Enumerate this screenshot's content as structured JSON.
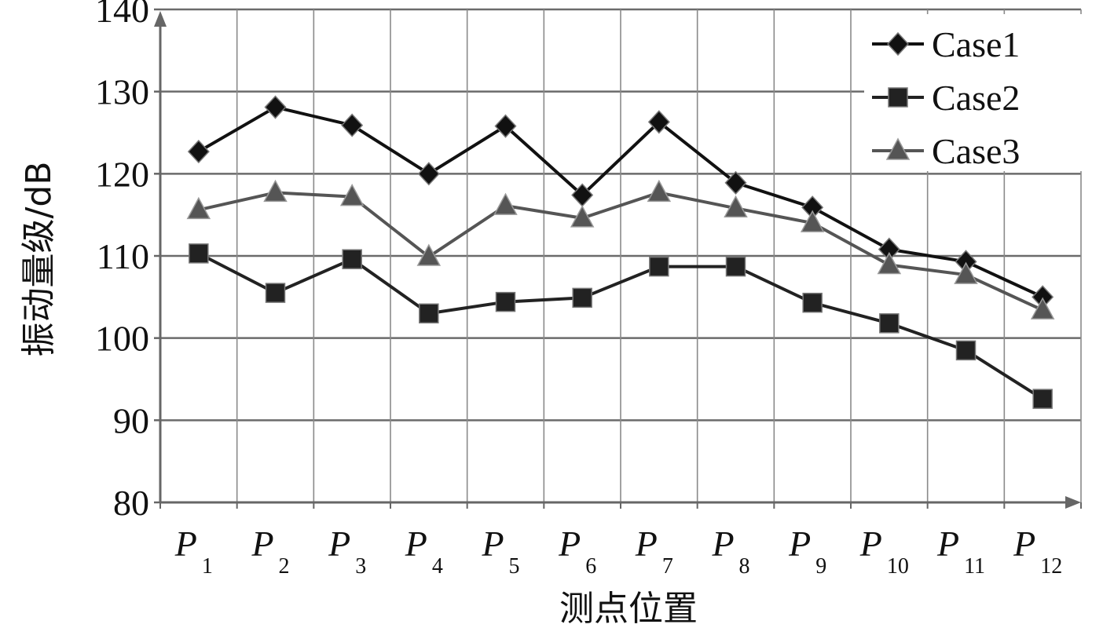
{
  "chart_data": {
    "type": "line",
    "xlabel": "测点位置",
    "ylabel": "振动量级/dB",
    "ylim": [
      80,
      140
    ],
    "yticks": [
      80,
      90,
      100,
      110,
      120,
      130,
      140
    ],
    "grid": true,
    "legend_position": "top-right",
    "categories": [
      {
        "base": "P",
        "sub": "1"
      },
      {
        "base": "P",
        "sub": "2"
      },
      {
        "base": "P",
        "sub": "3"
      },
      {
        "base": "P",
        "sub": "4"
      },
      {
        "base": "P",
        "sub": "5"
      },
      {
        "base": "P",
        "sub": "6"
      },
      {
        "base": "P",
        "sub": "7"
      },
      {
        "base": "P",
        "sub": "8"
      },
      {
        "base": "P",
        "sub": "9"
      },
      {
        "base": "P",
        "sub": "10"
      },
      {
        "base": "P",
        "sub": "11"
      },
      {
        "base": "P",
        "sub": "12"
      }
    ],
    "series": [
      {
        "name": "Case1",
        "marker": "diamond",
        "color": "#111111",
        "values": [
          122.7,
          128.1,
          125.9,
          120.0,
          125.8,
          117.4,
          126.3,
          118.9,
          115.9,
          110.8,
          109.3,
          105.0
        ]
      },
      {
        "name": "Case2",
        "marker": "square",
        "color": "#222222",
        "values": [
          110.3,
          105.5,
          109.6,
          103.0,
          104.4,
          104.9,
          108.7,
          108.7,
          104.3,
          101.8,
          98.5,
          92.6
        ]
      },
      {
        "name": "Case3",
        "marker": "triangle",
        "color": "#555555",
        "values": [
          115.6,
          117.7,
          117.2,
          109.9,
          116.1,
          114.6,
          117.7,
          115.8,
          114.0,
          108.9,
          107.7,
          103.4
        ]
      }
    ]
  }
}
